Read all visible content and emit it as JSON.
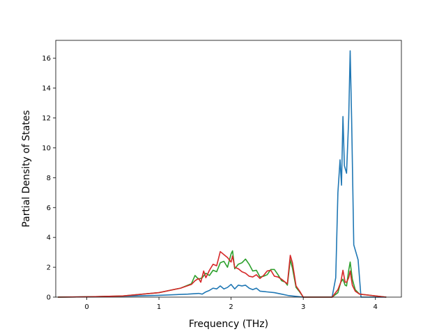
{
  "chart_data": {
    "type": "line",
    "title": "",
    "xlabel": "Frequency (THz)",
    "ylabel": "Partial Density of States",
    "xlim": [
      -0.43,
      4.36
    ],
    "ylim": [
      0,
      17.2
    ],
    "xticks": [
      0,
      1,
      2,
      3,
      4
    ],
    "yticks": [
      0,
      2,
      4,
      6,
      8,
      10,
      12,
      14,
      16
    ],
    "grid": false,
    "legend": "none",
    "series": [
      {
        "color": "#1f77b4",
        "x": [
          -0.4,
          0.0,
          0.5,
          1.0,
          1.4,
          1.55,
          1.6,
          1.65,
          1.7,
          1.75,
          1.8,
          1.85,
          1.9,
          1.95,
          2.0,
          2.05,
          2.1,
          2.15,
          2.2,
          2.25,
          2.3,
          2.35,
          2.4,
          2.5,
          2.6,
          2.7,
          2.8,
          2.9,
          3.0,
          3.4,
          3.45,
          3.48,
          3.51,
          3.53,
          3.55,
          3.57,
          3.6,
          3.63,
          3.65,
          3.67,
          3.7,
          3.76,
          3.8,
          4.15
        ],
        "y": [
          0,
          0.02,
          0.06,
          0.12,
          0.2,
          0.25,
          0.2,
          0.35,
          0.45,
          0.6,
          0.55,
          0.75,
          0.55,
          0.65,
          0.85,
          0.55,
          0.8,
          0.75,
          0.8,
          0.6,
          0.5,
          0.6,
          0.4,
          0.35,
          0.3,
          0.2,
          0.1,
          0.05,
          0.0,
          0.0,
          1.3,
          7.0,
          9.2,
          7.5,
          12.1,
          8.8,
          8.3,
          12.0,
          16.5,
          12.0,
          3.5,
          2.5,
          0,
          0
        ]
      },
      {
        "color": "#2ca02c",
        "x": [
          -0.4,
          0.0,
          0.5,
          1.0,
          1.3,
          1.45,
          1.5,
          1.55,
          1.6,
          1.65,
          1.7,
          1.75,
          1.8,
          1.85,
          1.9,
          1.95,
          2.0,
          2.02,
          2.05,
          2.1,
          2.15,
          2.2,
          2.25,
          2.3,
          2.35,
          2.4,
          2.45,
          2.5,
          2.55,
          2.6,
          2.65,
          2.7,
          2.75,
          2.78,
          2.82,
          2.85,
          2.9,
          2.95,
          3.0,
          3.4,
          3.48,
          3.52,
          3.55,
          3.58,
          3.6,
          3.63,
          3.65,
          3.68,
          3.72,
          3.78,
          4.15
        ],
        "y": [
          0,
          0.02,
          0.08,
          0.3,
          0.6,
          0.9,
          1.45,
          1.2,
          1.3,
          1.6,
          1.45,
          1.8,
          1.7,
          2.3,
          2.4,
          2.0,
          2.9,
          3.1,
          1.9,
          2.2,
          2.3,
          2.55,
          2.2,
          1.75,
          1.8,
          1.35,
          1.4,
          1.5,
          1.85,
          1.85,
          1.5,
          1.1,
          1.0,
          0.8,
          2.5,
          1.95,
          0.65,
          0.35,
          0.0,
          0.0,
          0.3,
          1.0,
          1.2,
          0.8,
          0.75,
          1.8,
          2.35,
          1.2,
          0.5,
          0.2,
          0
        ]
      },
      {
        "color": "#d62728",
        "x": [
          -0.4,
          0.0,
          0.5,
          1.0,
          1.3,
          1.45,
          1.5,
          1.55,
          1.58,
          1.62,
          1.65,
          1.7,
          1.75,
          1.8,
          1.85,
          1.9,
          1.95,
          2.0,
          2.02,
          2.05,
          2.1,
          2.15,
          2.2,
          2.25,
          2.3,
          2.35,
          2.4,
          2.45,
          2.5,
          2.55,
          2.6,
          2.65,
          2.7,
          2.75,
          2.78,
          2.82,
          2.85,
          2.9,
          2.95,
          3.0,
          3.4,
          3.48,
          3.52,
          3.55,
          3.58,
          3.6,
          3.63,
          3.65,
          3.68,
          3.72,
          3.78,
          4.15
        ],
        "y": [
          0,
          0.02,
          0.08,
          0.3,
          0.6,
          0.85,
          1.1,
          1.25,
          1.0,
          1.75,
          1.3,
          1.8,
          2.2,
          2.1,
          3.05,
          2.85,
          2.65,
          2.35,
          2.75,
          2.0,
          1.9,
          1.7,
          1.6,
          1.4,
          1.35,
          1.5,
          1.25,
          1.45,
          1.75,
          1.8,
          1.4,
          1.35,
          1.2,
          1.0,
          0.9,
          2.8,
          2.3,
          0.75,
          0.4,
          0.0,
          0.0,
          0.5,
          1.0,
          1.8,
          1.0,
          1.0,
          1.3,
          1.75,
          0.8,
          0.4,
          0.2,
          0
        ]
      }
    ]
  }
}
